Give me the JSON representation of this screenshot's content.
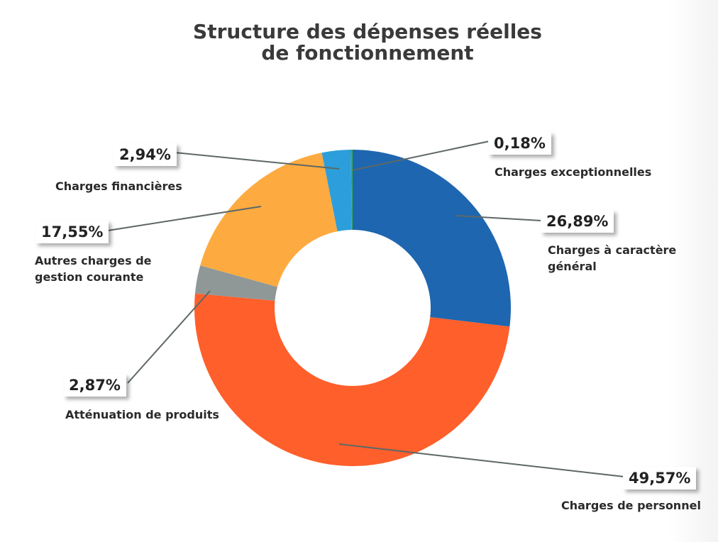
{
  "title": {
    "line1": "Structure des dépenses réelles",
    "line2": "de fonctionnement"
  },
  "chart_data": {
    "type": "pie",
    "donut": true,
    "title": "Structure des dépenses réelles de fonctionnement",
    "unit": "%",
    "slices": [
      {
        "label_line1": "Charges à caractère",
        "label_line2": "général",
        "value": 26.89,
        "display": "26,89%",
        "color": "#1e66b0"
      },
      {
        "label_line1": "Charges de personnel",
        "label_line2": "",
        "value": 49.57,
        "display": "49,57%",
        "color": "#ff5f2b"
      },
      {
        "label_line1": "Atténuation de produits",
        "label_line2": "",
        "value": 2.87,
        "display": "2,87%",
        "color": "#8f9897"
      },
      {
        "label_line1": "Autres charges de",
        "label_line2": "gestion courante",
        "value": 17.55,
        "display": "17,55%",
        "color": "#fdab40"
      },
      {
        "label_line1": "Charges financières",
        "label_line2": "",
        "value": 2.94,
        "display": "2,94%",
        "color": "#2c9edb"
      },
      {
        "label_line1": "Charges exceptionnelles",
        "label_line2": "",
        "value": 0.18,
        "display": "0,18%",
        "color": "#35a856"
      }
    ]
  }
}
